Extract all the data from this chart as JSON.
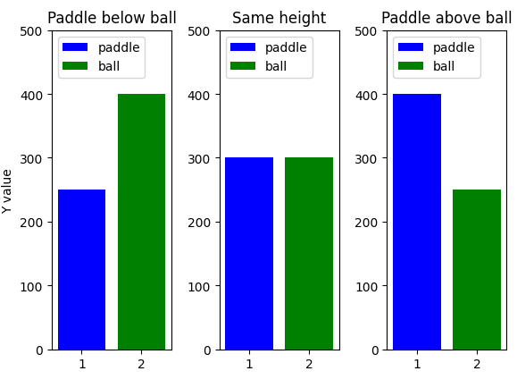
{
  "subplots": [
    {
      "title": "Paddle below ball",
      "paddle_value": 250,
      "ball_value": 400
    },
    {
      "title": "Same height",
      "paddle_value": 300,
      "ball_value": 300
    },
    {
      "title": "Paddle above ball",
      "paddle_value": 400,
      "ball_value": 250
    }
  ],
  "paddle_color": "blue",
  "ball_color": "green",
  "ylabel": "Y value",
  "xlabels": [
    "1",
    "2"
  ],
  "ylim": [
    0,
    500
  ],
  "yticks": [
    0,
    100,
    200,
    300,
    400,
    500
  ],
  "bar_width": 0.8,
  "x_positions": [
    1,
    2
  ],
  "xlim": [
    0.5,
    2.5
  ],
  "legend_labels": [
    "paddle",
    "ball"
  ],
  "figsize": [
    5.79,
    4.35
  ],
  "dpi": 100,
  "wspace": 0.4
}
